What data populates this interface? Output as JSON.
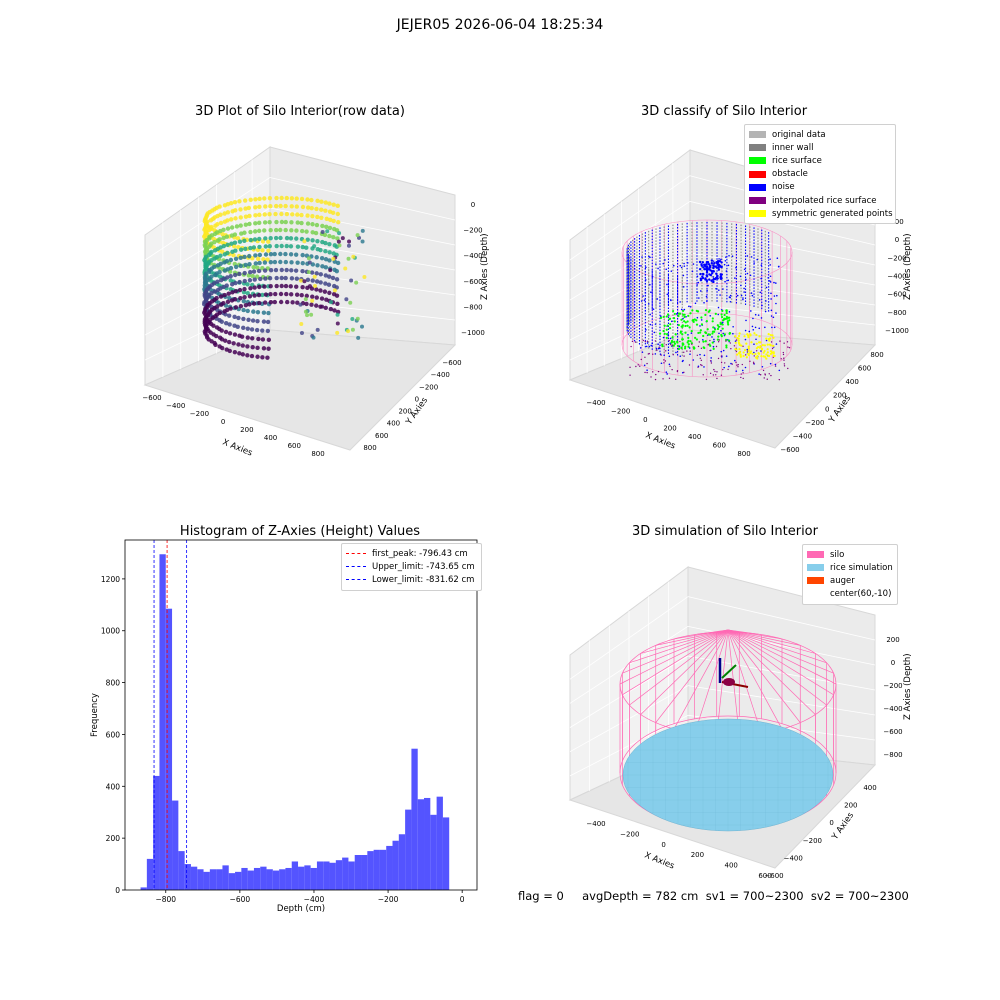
{
  "suptitle": "JEJER05 2026-06-04 18:25:34",
  "colors": {
    "hist_bar": "#4b4bff",
    "peak_line": "#ff0000",
    "limit_line": "#0000ff",
    "silo_wire": "#ff69b4"
  },
  "chart_data": [
    {
      "type": "scatter",
      "subtype": "3d",
      "title": "3D Plot of Silo Interior(row data)",
      "xlabel": "X Axies",
      "ylabel": "Y Axies",
      "zlabel": "Z Axies (Depth)",
      "x_ticks": [
        "−600",
        "−400",
        "−200",
        "0",
        "200",
        "400",
        "600",
        "800"
      ],
      "y_ticks": [
        "−600",
        "−400",
        "−200",
        "0",
        "200",
        "400",
        "600",
        "800"
      ],
      "z_ticks": [
        "0",
        "−200",
        "−400",
        "−600",
        "−800",
        "−1000"
      ],
      "xlim": [
        -600,
        800
      ],
      "ylim": [
        -600,
        800
      ],
      "zlim": [
        -1000,
        0
      ],
      "colormap": "viridis"
    },
    {
      "type": "scatter",
      "subtype": "3d",
      "title": "3D classify of Silo Interior",
      "xlabel": "X Axies",
      "ylabel": "Y Axies",
      "zlabel": "Z Axies (Depth)",
      "x_ticks": [
        "−400",
        "−200",
        "0",
        "200",
        "400",
        "600",
        "800"
      ],
      "y_ticks": [
        "−600",
        "−400",
        "−200",
        "0",
        "200",
        "400",
        "600",
        "800"
      ],
      "z_ticks": [
        "200",
        "0",
        "−200",
        "−400",
        "−600",
        "−800",
        "−1000"
      ],
      "legend_position": "top-right",
      "legend": [
        {
          "label": "original data",
          "color": "#b4b4b4"
        },
        {
          "label": "inner wall",
          "color": "#808080"
        },
        {
          "label": "rice surface",
          "color": "#00ff00"
        },
        {
          "label": "obstacle",
          "color": "#ff0000"
        },
        {
          "label": "noise",
          "color": "#0000ff"
        },
        {
          "label": "interpolated rice surface",
          "color": "#800080"
        },
        {
          "label": "symmetric generated points",
          "color": "#ffff00"
        }
      ]
    },
    {
      "type": "bar",
      "subtype": "histogram",
      "title": "Histogram of Z-Axies (Height) Values",
      "xlabel": "Depth (cm)",
      "ylabel": "Frequency",
      "xlim": [
        -910,
        40
      ],
      "ylim": [
        0,
        1350
      ],
      "x_ticks": [
        -800,
        -600,
        -400,
        -200,
        0
      ],
      "y_ticks": [
        0,
        200,
        400,
        600,
        800,
        1000,
        1200
      ],
      "bin_width": 17,
      "bin_start": -868,
      "values": [
        10,
        120,
        440,
        1295,
        1085,
        345,
        150,
        100,
        90,
        80,
        70,
        80,
        80,
        95,
        65,
        70,
        85,
        75,
        85,
        90,
        80,
        75,
        80,
        85,
        110,
        90,
        95,
        85,
        110,
        110,
        105,
        115,
        125,
        110,
        135,
        135,
        150,
        155,
        155,
        170,
        190,
        215,
        310,
        545,
        350,
        355,
        290,
        360,
        280
      ],
      "lines": [
        {
          "label": "first_peak: -796.43 cm",
          "value": -796.43,
          "color": "#ff0000"
        },
        {
          "label": "Upper_limit: -743.65 cm",
          "value": -743.65,
          "color": "#0000ff"
        },
        {
          "label": "Lower_limit: -831.62 cm",
          "value": -831.62,
          "color": "#0000ff"
        }
      ],
      "legend_position": "top-right"
    },
    {
      "type": "scatter",
      "subtype": "3d",
      "title": "3D simulation of Silo Interior",
      "xlabel": "X Axies",
      "ylabel": "Y Axies",
      "zlabel": "Z Axies (Depth)",
      "x_ticks": [
        "−400",
        "−200",
        "0",
        "200",
        "400",
        "600"
      ],
      "y_ticks": [
        "−600",
        "−400",
        "−200",
        "0",
        "200",
        "400"
      ],
      "z_ticks": [
        "200",
        "0",
        "−200",
        "−400",
        "−600",
        "−800"
      ],
      "legend_position": "top-right",
      "legend": [
        {
          "label": "silo",
          "color": "#ff69b4"
        },
        {
          "label": "rice simulation",
          "color": "#87ceeb"
        },
        {
          "label": "auger",
          "color": "#ff4500"
        },
        {
          "label": "center(60,-10)",
          "color": ""
        }
      ]
    }
  ],
  "footer": "flag = 0     avgDepth = 782 cm  sv1 = 700~2300  sv2 = 700~2300"
}
